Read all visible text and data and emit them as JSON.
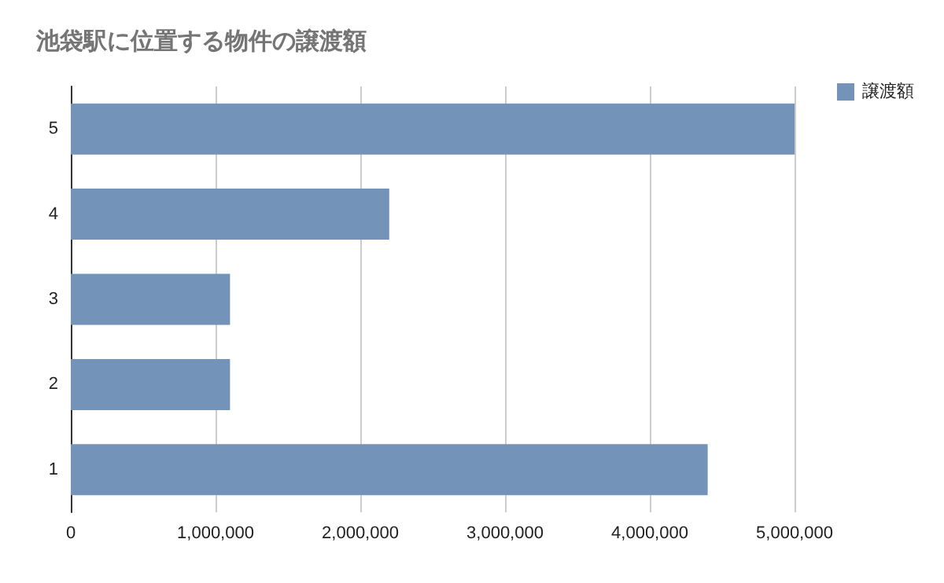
{
  "chart_data": {
    "type": "bar",
    "orientation": "horizontal",
    "title": "池袋駅に位置する物件の譲渡額",
    "categories": [
      "5",
      "4",
      "3",
      "2",
      "1"
    ],
    "series": [
      {
        "name": "譲渡額",
        "color": "#7393b9",
        "values": [
          5000000,
          2200000,
          1100000,
          1100000,
          4400000
        ]
      }
    ],
    "xlim": [
      0,
      5000000
    ],
    "xticks": [
      {
        "value": 0,
        "label": "0"
      },
      {
        "value": 1000000,
        "label": "1,000,000"
      },
      {
        "value": 2000000,
        "label": "2,000,000"
      },
      {
        "value": 3000000,
        "label": "3,000,000"
      },
      {
        "value": 4000000,
        "label": "4,000,000"
      },
      {
        "value": 5000000,
        "label": "5,000,000"
      }
    ],
    "grid": "x",
    "legend": "top right"
  }
}
